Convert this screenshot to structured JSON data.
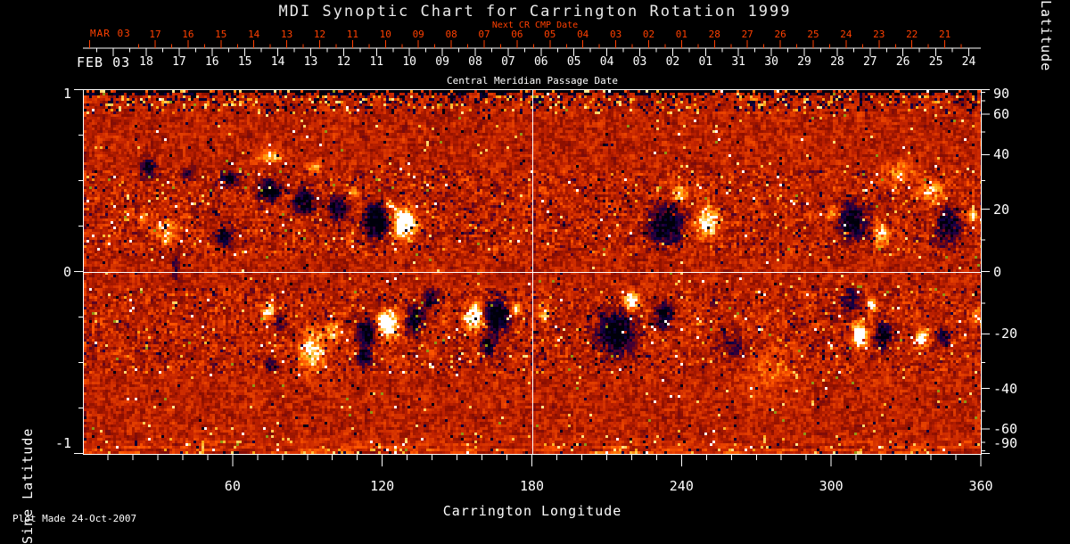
{
  "title": "MDI Synoptic Chart for Carrington Rotation 1999",
  "colors": {
    "background": "#000000",
    "axis": "#ffffff",
    "next_cr_red": "#ff4000",
    "title_text": "#e9e9e9"
  },
  "next_cr_axis": {
    "note": "Next CR CMP Date",
    "month_label": "MAR 03",
    "day_labels": [
      "17",
      "16",
      "15",
      "14",
      "13",
      "12",
      "11",
      "10",
      "09",
      "08",
      "07",
      "06",
      "05",
      "04",
      "03",
      "02",
      "01",
      "28",
      "27",
      "26",
      "25",
      "24",
      "23",
      "22",
      "21"
    ]
  },
  "cmp_axis": {
    "title": "Central Meridian Passage Date",
    "month_label": "FEB 03",
    "day_labels": [
      "18",
      "17",
      "16",
      "15",
      "14",
      "13",
      "12",
      "11",
      "10",
      "09",
      "08",
      "07",
      "06",
      "05",
      "04",
      "03",
      "02",
      "01",
      "31",
      "30",
      "29",
      "28",
      "27",
      "26",
      "25",
      "24"
    ]
  },
  "left_axis": {
    "title": "Sine Latitude",
    "tick_labels": [
      "1",
      "0",
      "-1"
    ],
    "tick_values": [
      1,
      0,
      -1
    ],
    "minor_step": 0.25
  },
  "right_axis": {
    "title": "Latitude",
    "tick_labels": [
      "90",
      "60",
      "40",
      "20",
      "0",
      "-20",
      "-40",
      "-60",
      "-90"
    ],
    "tick_values": [
      90,
      60,
      40,
      20,
      0,
      -20,
      -40,
      -60,
      -90
    ],
    "minor_ticks_deg": [
      80,
      70,
      50,
      30,
      10,
      -10,
      -30,
      -50,
      -70,
      -80
    ]
  },
  "bottom_axis": {
    "title": "Carrington Longitude",
    "tick_labels": [
      "60",
      "120",
      "180",
      "240",
      "300",
      "360"
    ],
    "tick_values": [
      60,
      120,
      180,
      240,
      300,
      360
    ],
    "minor_step_deg": 10,
    "range": [
      0,
      360
    ]
  },
  "footer": {
    "plot_made": "Plot Made 24-Oct-2007"
  },
  "chart_data": {
    "type": "heatmap",
    "title": "MDI Synoptic Chart for Carrington Rotation 1999",
    "rotation": 1999,
    "xlabel": "Carrington Longitude",
    "x_range": [
      0,
      360
    ],
    "ylabel_left": "Sine Latitude",
    "y_range_sine": [
      -1,
      1
    ],
    "ylabel_right": "Latitude",
    "y_range_lat": [
      -90,
      90
    ],
    "grid": false,
    "crosshair": {
      "longitude": 180,
      "sine_latitude": 0
    },
    "palette": {
      "quiet_sun": [
        "#c32300",
        "#ff5500",
        "#ffaa14"
      ],
      "positive_field": [
        "#ffaa14",
        "#ffeb96",
        "#ffffff"
      ],
      "negative_field": [
        "#8c0f00",
        "#460032",
        "#0f0046",
        "#000000"
      ],
      "polar_noise": [
        "#140078",
        "#ffc832",
        "#000000"
      ]
    },
    "polar_noise_bands": true,
    "active_regions_lon_sin_rlon_rsin_amp": [
      [
        25.7,
        0.58,
        4.3,
        0.03,
        -1.2
      ],
      [
        41.8,
        0.54,
        3.6,
        0.025,
        -0.9
      ],
      [
        57.9,
        0.51,
        5.0,
        0.03,
        -1.3
      ],
      [
        74.0,
        0.45,
        5.7,
        0.04,
        -1.6
      ],
      [
        88.3,
        0.39,
        5.0,
        0.04,
        -1.8
      ],
      [
        101.9,
        0.35,
        4.3,
        0.04,
        -1.6
      ],
      [
        74.0,
        0.64,
        6.4,
        0.03,
        0.9
      ],
      [
        91.9,
        0.58,
        4.3,
        0.025,
        0.8
      ],
      [
        108.0,
        0.44,
        2.9,
        0.02,
        0.7
      ],
      [
        116.9,
        0.28,
        5.7,
        0.059,
        -2.2
      ],
      [
        128.4,
        0.27,
        5.4,
        0.054,
        2.4
      ],
      [
        122.6,
        0.37,
        2.9,
        0.025,
        1.1
      ],
      [
        32.9,
        0.23,
        5.7,
        0.039,
        1.2
      ],
      [
        24.0,
        0.31,
        2.9,
        0.024,
        0.8
      ],
      [
        56.1,
        0.2,
        4.3,
        0.034,
        -1.5
      ],
      [
        36.5,
        0.02,
        2.1,
        0.049,
        -0.7
      ],
      [
        233.1,
        0.26,
        7.9,
        0.064,
        -1.9
      ],
      [
        249.9,
        0.28,
        5.4,
        0.054,
        1.6
      ],
      [
        239.2,
        0.43,
        3.6,
        0.029,
        1.0
      ],
      [
        308.2,
        0.28,
        7.2,
        0.059,
        -1.7
      ],
      [
        320.0,
        0.21,
        3.6,
        0.039,
        1.2
      ],
      [
        300.0,
        0.33,
        2.9,
        0.024,
        0.9
      ],
      [
        346.5,
        0.26,
        6.1,
        0.059,
        -1.6
      ],
      [
        339.3,
        0.45,
        7.2,
        0.039,
        0.9
      ],
      [
        356.5,
        0.31,
        2.9,
        0.029,
        1.0
      ],
      [
        326.1,
        0.55,
        10.0,
        0.044,
        0.5
      ],
      [
        74.0,
        -0.21,
        3.6,
        0.034,
        1.4
      ],
      [
        78.7,
        -0.27,
        2.9,
        0.029,
        -1.2
      ],
      [
        91.2,
        -0.43,
        6.4,
        0.064,
        1.4
      ],
      [
        99.8,
        -0.33,
        4.3,
        0.039,
        1.0
      ],
      [
        112.6,
        -0.46,
        3.6,
        0.034,
        -1.5
      ],
      [
        74.7,
        -0.5,
        2.9,
        0.024,
        -0.9
      ],
      [
        121.9,
        -0.28,
        5.4,
        0.049,
        2.0
      ],
      [
        113.3,
        -0.33,
        4.3,
        0.044,
        -1.7
      ],
      [
        132.7,
        -0.25,
        4.3,
        0.049,
        -1.5
      ],
      [
        139.1,
        -0.14,
        3.6,
        0.034,
        -1.2
      ],
      [
        156.3,
        -0.24,
        4.6,
        0.039,
        2.2
      ],
      [
        165.5,
        -0.23,
        5.4,
        0.054,
        -2.2
      ],
      [
        162.3,
        -0.4,
        3.9,
        0.039,
        -1.4
      ],
      [
        173.1,
        -0.2,
        2.9,
        0.024,
        1.0
      ],
      [
        184.9,
        -0.22,
        2.9,
        0.029,
        1.0
      ],
      [
        213.5,
        -0.33,
        8.9,
        0.073,
        -2.0
      ],
      [
        219.2,
        -0.16,
        3.6,
        0.034,
        1.8
      ],
      [
        232.1,
        -0.23,
        4.6,
        0.044,
        -1.5
      ],
      [
        260.0,
        -0.42,
        6.4,
        0.049,
        -0.6
      ],
      [
        307.2,
        -0.15,
        4.6,
        0.039,
        -1.3
      ],
      [
        315.7,
        -0.18,
        2.9,
        0.024,
        1.0
      ],
      [
        311.1,
        -0.34,
        3.9,
        0.039,
        2.3
      ],
      [
        320.4,
        -0.34,
        3.9,
        0.044,
        -1.8
      ],
      [
        336.1,
        -0.36,
        3.2,
        0.034,
        1.7
      ],
      [
        344.7,
        -0.35,
        2.9,
        0.029,
        -1.4
      ],
      [
        358.6,
        -0.25,
        3.2,
        0.034,
        0.9
      ],
      [
        274.3,
        -0.55,
        14.3,
        0.088,
        0.35
      ]
    ]
  }
}
